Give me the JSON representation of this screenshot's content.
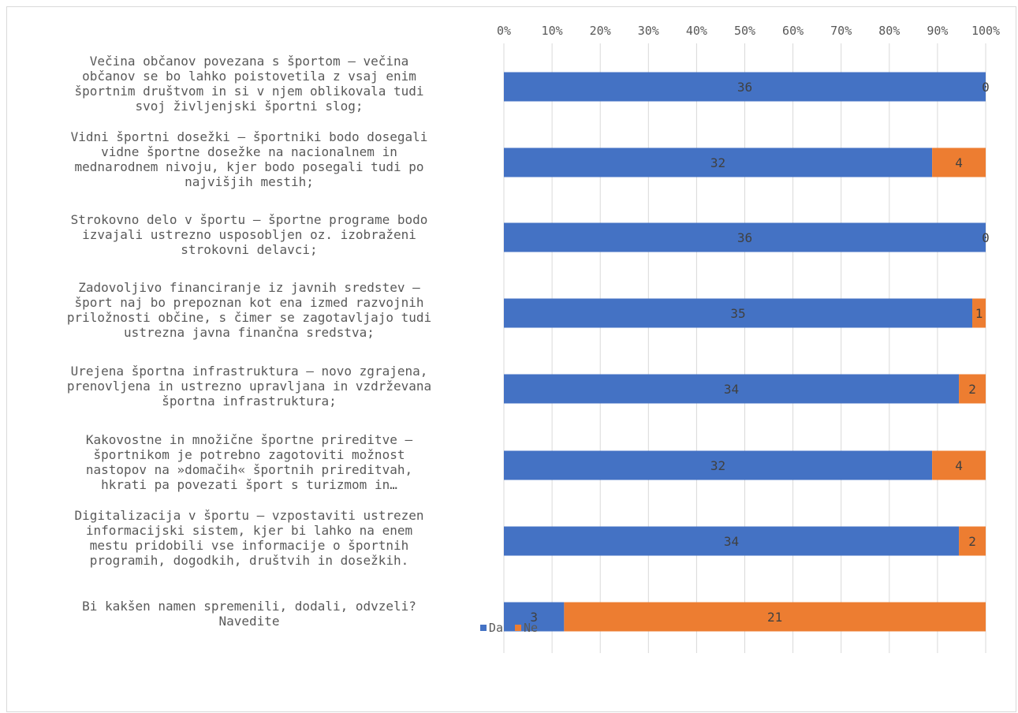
{
  "chart_data": {
    "type": "bar",
    "orientation": "horizontal",
    "stacked": "percent",
    "categories": [
      "Večina občanov povezana s športom – večina občanov se bo lahko poistovetila z vsaj enim športnim društvom in si v njem oblikovala tudi svoj življenjski športni slog;",
      "Vidni športni dosežki – športniki bodo dosegali vidne športne dosežke na nacionalnem in mednarodnem nivoju, kjer bodo posegali tudi po najvišjih mestih;",
      "Strokovno delo v športu – športne programe bodo izvajali ustrezno usposobljen oz. izobraženi strokovni delavci;",
      "Zadovoljivo financiranje iz javnih sredstev – šport naj bo prepoznan kot ena izmed razvojnih priložnosti občine, s čimer se zagotavljajo tudi ustrezna javna finančna sredstva;",
      "Urejena športna infrastruktura – novo zgrajena, prenovljena in ustrezno upravljana in vzdrževana športna infrastruktura;",
      "Kakovostne in množične športne prireditve  – športnikom je potrebno zagotoviti možnost nastopov na »domačih« športnih prireditvah, hkrati pa povezati šport s turizmom in…",
      "Digitalizacija v športu – vzpostaviti ustrezen informacijski sistem, kjer bi lahko na enem mestu pridobili vse informacije o športnih programih, dogodkih, društvih in dosežkih.",
      "Bi kakšen namen spremenili, dodali, odvzeli? Navedite"
    ],
    "category_lines": [
      [
        "Večina občanov povezana s športom – večina",
        "občanov se bo lahko poistovetila z vsaj enim",
        "športnim društvom in si v njem oblikovala tudi",
        "svoj življenjski športni slog;"
      ],
      [
        "Vidni športni dosežki – športniki bodo dosegali",
        "vidne športne dosežke na nacionalnem in",
        "mednarodnem nivoju, kjer bodo posegali tudi po",
        "najvišjih mestih;"
      ],
      [
        "Strokovno delo v športu – športne programe bodo",
        "izvajali ustrezno usposobljen oz. izobraženi",
        "strokovni delavci;"
      ],
      [
        "Zadovoljivo financiranje iz javnih sredstev –",
        "šport naj bo prepoznan kot ena izmed razvojnih",
        "priložnosti občine, s čimer se zagotavljajo tudi",
        "ustrezna javna finančna sredstva;"
      ],
      [
        "Urejena športna infrastruktura – novo zgrajena,",
        "prenovljena in ustrezno upravljana in vzdrževana",
        "športna infrastruktura;"
      ],
      [
        "Kakovostne in množične športne prireditve  –",
        "športnikom je potrebno zagotoviti možnost",
        "nastopov na »domačih« športnih prireditvah,",
        "hkrati pa povezati šport s turizmom in…"
      ],
      [
        "Digitalizacija v športu – vzpostaviti ustrezen",
        "informacijski sistem, kjer bi lahko na enem",
        "mestu pridobili vse informacije o športnih",
        "programih, dogodkih, društvih in dosežkih."
      ],
      [
        "Bi kakšen namen spremenili, dodali, odvzeli?",
        "Navedite"
      ]
    ],
    "series": [
      {
        "name": "Da",
        "color": "#4472c4",
        "values": [
          36,
          32,
          36,
          35,
          34,
          32,
          34,
          3
        ]
      },
      {
        "name": "Ne",
        "color": "#ed7d31",
        "values": [
          0,
          4,
          0,
          1,
          2,
          4,
          2,
          21
        ]
      }
    ],
    "x_ticks": [
      "0%",
      "10%",
      "20%",
      "30%",
      "40%",
      "50%",
      "60%",
      "70%",
      "80%",
      "90%",
      "100%"
    ],
    "xlim": [
      0,
      100
    ],
    "xaxis_position": "top",
    "grid": true,
    "data_labels": true,
    "legend": {
      "position": "bottom",
      "entries": [
        "Da",
        "Ne"
      ]
    }
  }
}
